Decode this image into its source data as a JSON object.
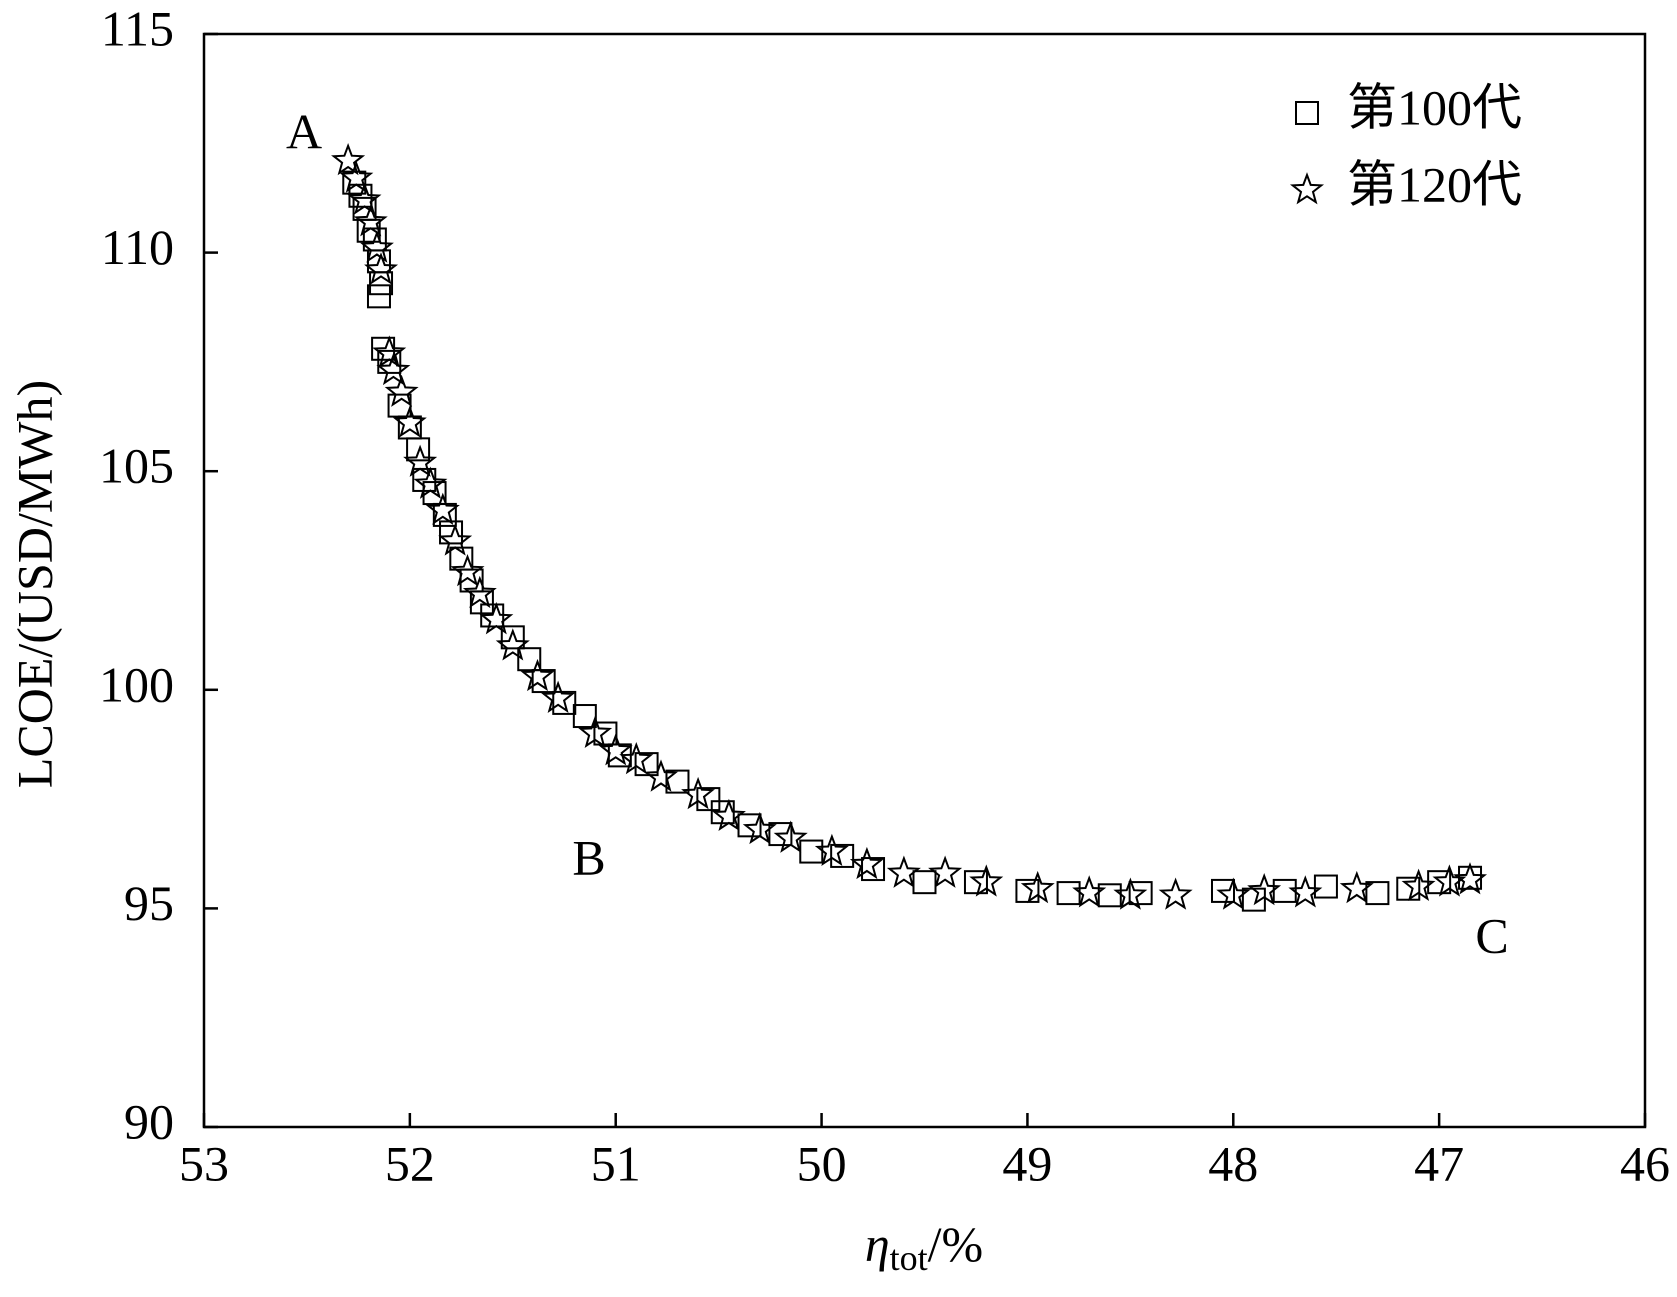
{
  "chart_data": {
    "type": "scatter",
    "ylabel": "LCOE/(USD/MWh)",
    "xlabel": {
      "symbol": "η",
      "subscript": "tot",
      "unit": "/%"
    },
    "xlim": [
      53,
      46
    ],
    "xticks": [
      53,
      52,
      51,
      50,
      49,
      48,
      47,
      46
    ],
    "ylim": [
      90,
      115
    ],
    "yticks": [
      90,
      95,
      100,
      105,
      110,
      115
    ],
    "legend": "upper right",
    "annotations": [
      "A",
      "B",
      "C"
    ],
    "series": [
      {
        "name": "第100代",
        "marker": "square",
        "color": "#000000",
        "x": [
          52.27,
          52.24,
          52.22,
          52.2,
          52.17,
          52.15,
          52.14,
          52.15,
          52.13,
          52.1,
          52.05,
          52.0,
          51.96,
          51.93,
          51.88,
          51.83,
          51.8,
          51.75,
          51.7,
          51.65,
          51.6,
          51.5,
          51.42,
          51.35,
          51.25,
          51.15,
          51.05,
          50.98,
          50.85,
          50.7,
          50.55,
          50.48,
          50.35,
          50.2,
          50.05,
          49.9,
          49.75,
          49.5,
          49.25,
          49.0,
          48.8,
          48.6,
          48.45,
          48.05,
          47.9,
          47.75,
          47.55,
          47.3,
          47.15,
          47.0,
          46.85
        ],
        "values": [
          111.6,
          111.3,
          111.0,
          110.5,
          110.3,
          109.8,
          109.3,
          109.0,
          107.8,
          107.5,
          106.5,
          106.0,
          105.5,
          104.8,
          104.5,
          104.0,
          103.6,
          103.0,
          102.5,
          102.0,
          101.7,
          101.2,
          100.7,
          100.2,
          99.7,
          99.4,
          99.0,
          98.5,
          98.3,
          97.9,
          97.5,
          97.2,
          96.9,
          96.7,
          96.3,
          96.2,
          95.9,
          95.6,
          95.6,
          95.4,
          95.35,
          95.3,
          95.35,
          95.4,
          95.2,
          95.4,
          95.5,
          95.35,
          95.45,
          95.6,
          95.7
        ]
      },
      {
        "name": "第120代",
        "marker": "star",
        "color": "#000000",
        "x": [
          52.3,
          52.26,
          52.22,
          52.19,
          52.16,
          52.14,
          52.1,
          52.08,
          52.04,
          52.0,
          51.95,
          51.9,
          51.84,
          51.78,
          51.72,
          51.66,
          51.58,
          51.5,
          51.38,
          51.28,
          51.1,
          51.0,
          50.9,
          50.78,
          50.6,
          50.45,
          50.3,
          50.15,
          49.95,
          49.78,
          49.6,
          49.4,
          49.2,
          48.95,
          48.7,
          48.5,
          48.28,
          48.0,
          47.85,
          47.65,
          47.4,
          47.1,
          46.95,
          46.85
        ],
        "values": [
          112.1,
          111.7,
          111.2,
          110.7,
          110.1,
          109.6,
          107.7,
          107.3,
          106.8,
          106.1,
          105.2,
          104.7,
          104.1,
          103.4,
          102.7,
          102.2,
          101.6,
          101.0,
          100.3,
          99.8,
          99.0,
          98.6,
          98.4,
          98.0,
          97.6,
          97.1,
          96.8,
          96.6,
          96.3,
          96.0,
          95.8,
          95.8,
          95.6,
          95.45,
          95.35,
          95.3,
          95.3,
          95.3,
          95.4,
          95.35,
          95.45,
          95.5,
          95.6,
          95.65
        ]
      }
    ]
  }
}
